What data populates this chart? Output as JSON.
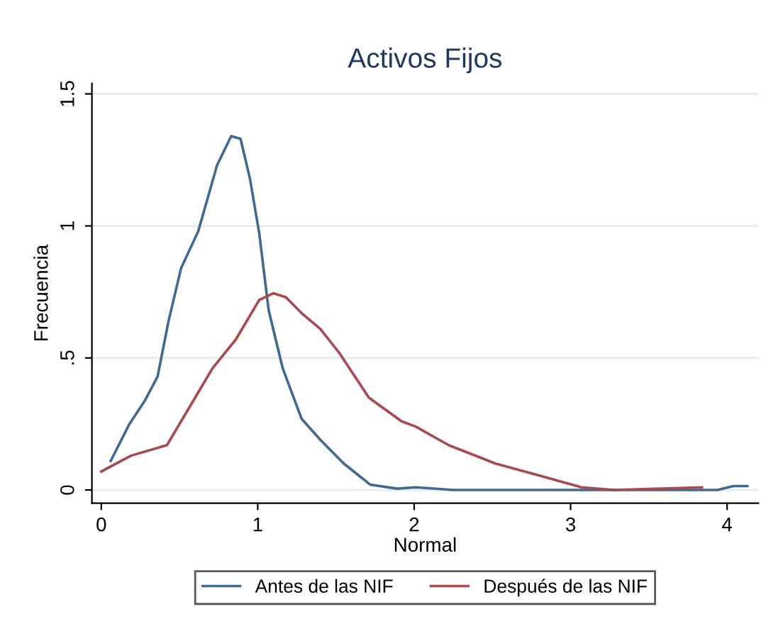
{
  "chart_data": {
    "type": "line",
    "title": "Activos Fijos",
    "xlabel": "Normal",
    "ylabel": "Frecuencia",
    "xlim": [
      -0.06,
      4.2
    ],
    "ylim": [
      -0.05,
      1.54
    ],
    "xticks": [
      0,
      1,
      2,
      3,
      4
    ],
    "yticks": [
      0,
      {
        "value": 0.5,
        "label": ".5"
      },
      1,
      1.5
    ],
    "grid": "y",
    "legend": "bottom",
    "marker": "none",
    "line_style": "solid",
    "series": [
      {
        "name": "Antes de las NIF",
        "color": "#3e6a94",
        "x": [
          0.06,
          0.18,
          0.28,
          0.36,
          0.43,
          0.51,
          0.62,
          0.74,
          0.83,
          0.89,
          0.95,
          1.01,
          1.07,
          1.16,
          1.28,
          1.4,
          1.55,
          1.72,
          1.89,
          2.01,
          2.25,
          3.94,
          4.04,
          4.13
        ],
        "values": [
          0.11,
          0.25,
          0.34,
          0.43,
          0.64,
          0.84,
          0.98,
          1.23,
          1.34,
          1.33,
          1.18,
          0.97,
          0.68,
          0.46,
          0.27,
          0.19,
          0.1,
          0.02,
          0.005,
          0.01,
          0,
          0,
          0.015,
          0.015
        ]
      },
      {
        "name": "Después de las NIF",
        "color": "#a84a4f",
        "x": [
          0,
          0.19,
          0.42,
          0.52,
          0.71,
          0.86,
          1.01,
          1.1,
          1.18,
          1.28,
          1.4,
          1.52,
          1.71,
          1.92,
          2.01,
          2.22,
          2.52,
          2.83,
          3.07,
          3.28,
          3.58,
          3.84
        ],
        "values": [
          0.07,
          0.13,
          0.17,
          0.27,
          0.46,
          0.57,
          0.72,
          0.745,
          0.73,
          0.67,
          0.61,
          0.52,
          0.35,
          0.26,
          0.24,
          0.17,
          0.1,
          0.05,
          0.01,
          0,
          0.005,
          0.01
        ]
      }
    ]
  }
}
